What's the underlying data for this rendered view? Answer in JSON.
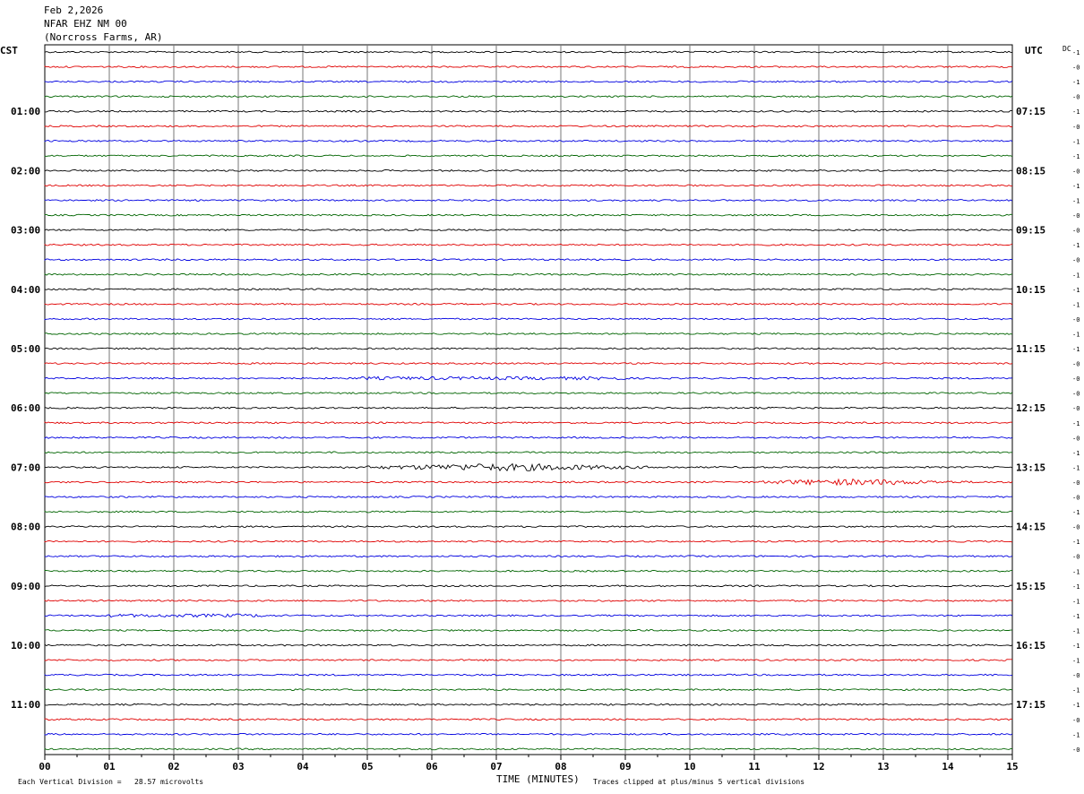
{
  "header": {
    "date": "Feb 2,2026",
    "station": "NFAR EHZ NM 00",
    "location": "(Norcross Farms, AR)"
  },
  "left_tz": "CST",
  "right_tz": "UTC",
  "dc_label": "DC",
  "footer": {
    "scale_note": "Each Vertical Division =   28.57 microvolts",
    "xlabel": "TIME (MINUTES)",
    "clip_note": "Traces clipped at plus/minus 5 vertical divisions"
  },
  "chart_data": {
    "type": "line",
    "title": "",
    "xlabel": "TIME (MINUTES)",
    "xlim": [
      0,
      15
    ],
    "x_ticks": [
      "00",
      "01",
      "02",
      "03",
      "04",
      "05",
      "06",
      "07",
      "08",
      "09",
      "10",
      "11",
      "12",
      "13",
      "14",
      "15"
    ],
    "trace_count": 48,
    "trace_colors": [
      "#000000",
      "#e00000",
      "#0000e0",
      "#006400"
    ],
    "left_hour_labels": [
      "01:00",
      "02:00",
      "03:00",
      "04:00",
      "05:00",
      "06:00",
      "07:00",
      "08:00",
      "09:00",
      "10:00",
      "11:00"
    ],
    "right_hour_labels": [
      "07:15",
      "08:15",
      "09:15",
      "10:15",
      "11:15",
      "12:15",
      "13:15",
      "14:15",
      "15:15",
      "16:15",
      "17:15"
    ],
    "hour_label_trace_index": [
      4,
      8,
      12,
      16,
      20,
      24,
      28,
      32,
      36,
      40,
      44
    ],
    "dc_offsets": [
      "-1",
      "-0",
      "-1",
      "-0",
      "-1",
      "-0",
      "-1",
      "-1",
      "-0",
      "-1",
      "-1",
      "-0",
      "-0",
      "-1",
      "-0",
      "-1",
      "-1",
      "-1",
      "-0",
      "-1",
      "-1",
      "-0",
      "-0",
      "-0",
      "-0",
      "-1",
      "-0",
      "-1",
      "-1",
      "-0",
      "-0",
      "-1",
      "-0",
      "-1",
      "-0",
      "-1",
      "-1",
      "-1",
      "-1",
      "-1",
      "-1",
      "-1",
      "-0",
      "-1",
      "-1",
      "-0",
      "-1",
      "-0"
    ],
    "amplitude_scale": "28.57 microvolts per vertical division",
    "grid": true
  }
}
